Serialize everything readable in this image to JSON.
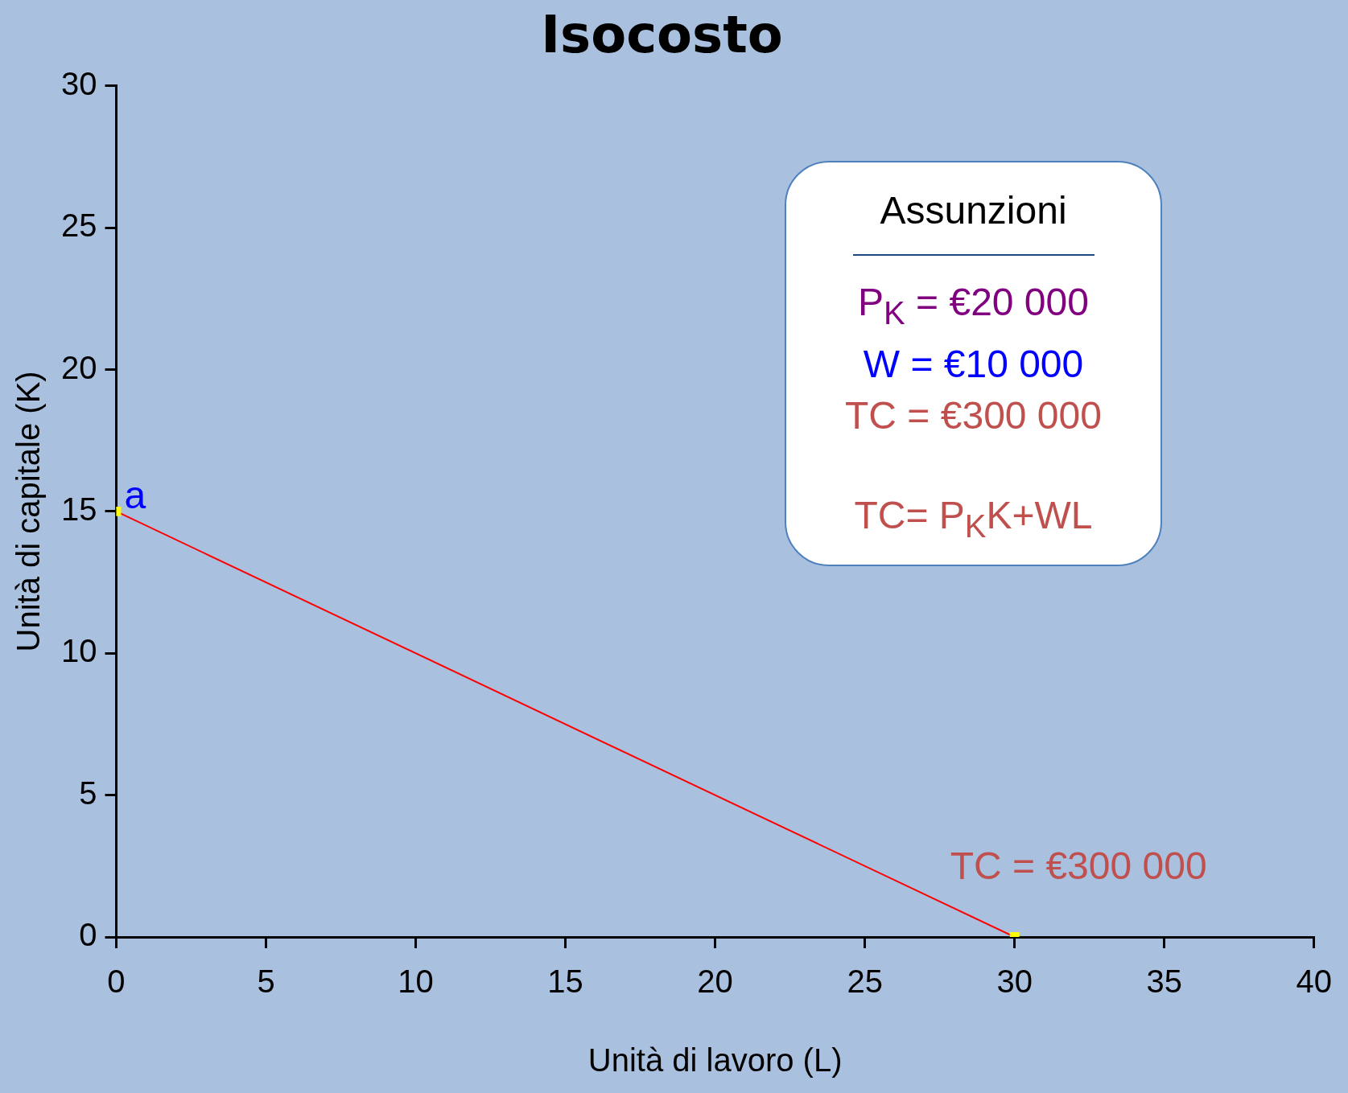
{
  "chart_data": {
    "type": "line",
    "title": "Isocosto",
    "xlabel": "Unità di lavoro (L)",
    "ylabel": "Unità di capitale (K)",
    "x": [
      0,
      30
    ],
    "series": [
      {
        "color": "#ff0000",
        "values": [
          15,
          0
        ]
      }
    ],
    "xlim": [
      0,
      40
    ],
    "xticks": [
      0,
      5,
      10,
      15,
      20,
      25,
      30,
      35,
      40
    ],
    "ylim": [
      0,
      30
    ],
    "yticks": [
      0,
      5,
      10,
      15,
      20,
      25,
      30
    ],
    "grid": false,
    "legend": false,
    "marker": "square",
    "line_style": "solid",
    "annotations": [
      {
        "text": "a",
        "x": 0,
        "y": 15
      },
      {
        "text": "TC = €300 000",
        "x": 30,
        "y": 0
      },
      "Assunzioni",
      "P$_{K}$ = €20 000",
      "W = €10 000",
      "TC = €300 000",
      "TC= P$_{K}$K+WL"
    ]
  }
}
